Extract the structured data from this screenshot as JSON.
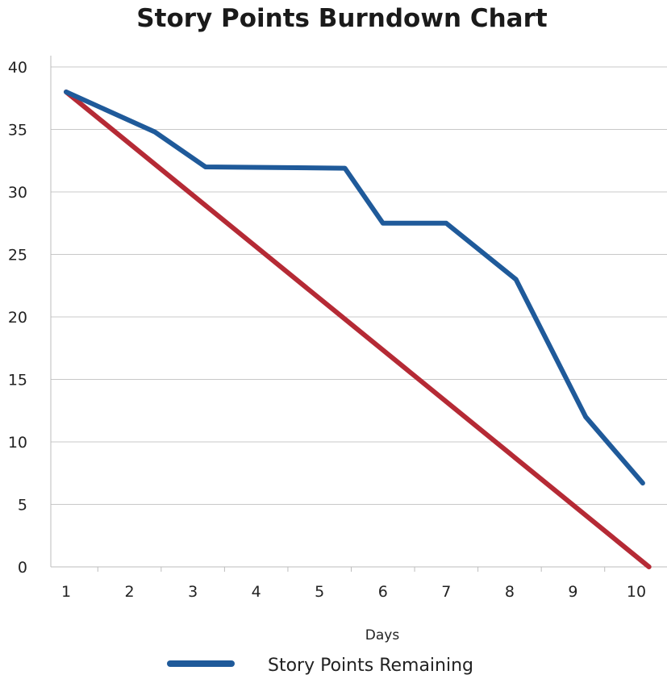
{
  "chart_data": {
    "type": "line",
    "title": "Story Points Burndown Chart",
    "xlabel": "Days",
    "ylabel": "",
    "categories": [
      "1",
      "2",
      "3",
      "4",
      "5",
      "6",
      "7",
      "8",
      "9",
      "10"
    ],
    "ylim": [
      0,
      40
    ],
    "yticks": [
      0,
      5,
      10,
      15,
      20,
      25,
      30,
      35,
      40
    ],
    "grid": true,
    "legend_position": "bottom",
    "series": [
      {
        "name": "Story Points Remaining",
        "color": "#1f5a9a",
        "points": [
          {
            "x": 1,
            "y": 38
          },
          {
            "x": 2.4,
            "y": 34.8
          },
          {
            "x": 3.2,
            "y": 32
          },
          {
            "x": 5.4,
            "y": 31.9
          },
          {
            "x": 6,
            "y": 27.5
          },
          {
            "x": 7,
            "y": 27.5
          },
          {
            "x": 8.1,
            "y": 23
          },
          {
            "x": 9.2,
            "y": 12
          },
          {
            "x": 10.1,
            "y": 6.7
          }
        ]
      },
      {
        "name": "",
        "color": "#b52a35",
        "points": [
          {
            "x": 1,
            "y": 38
          },
          {
            "x": 10.2,
            "y": 0
          }
        ]
      }
    ]
  }
}
